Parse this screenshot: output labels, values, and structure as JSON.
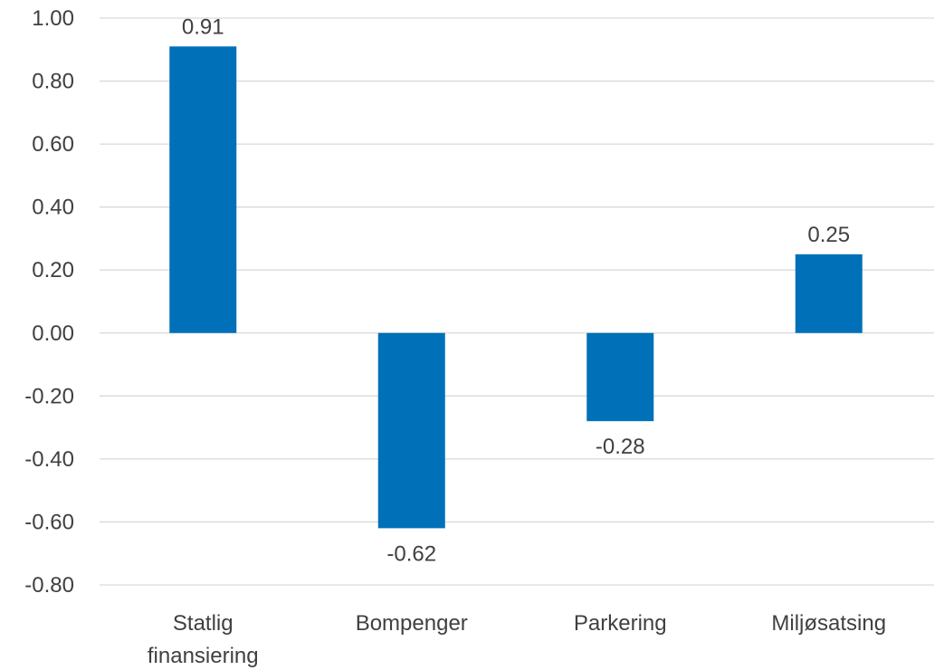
{
  "chart_data": {
    "type": "bar",
    "title": "",
    "xlabel": "",
    "ylabel": "",
    "categories": [
      [
        "Statlig",
        "finansiering"
      ],
      [
        "Bompenger"
      ],
      [
        "Parkering"
      ],
      [
        "Miljøsatsing"
      ]
    ],
    "values": [
      0.91,
      -0.62,
      -0.28,
      0.25
    ],
    "data_labels": [
      "0.91",
      "-0.62",
      "-0.28",
      "0.25"
    ],
    "ylim": [
      -0.8,
      1.0
    ],
    "yticks": [
      "1.00",
      "0.80",
      "0.60",
      "0.40",
      "0.20",
      "0.00",
      "-0.20",
      "-0.40",
      "-0.60",
      "-0.80"
    ],
    "ytick_values": [
      1.0,
      0.8,
      0.6,
      0.4,
      0.2,
      0.0,
      -0.2,
      -0.4,
      -0.6,
      -0.8
    ],
    "grid": true,
    "legend": "none",
    "bar_color": "#0070b8"
  }
}
